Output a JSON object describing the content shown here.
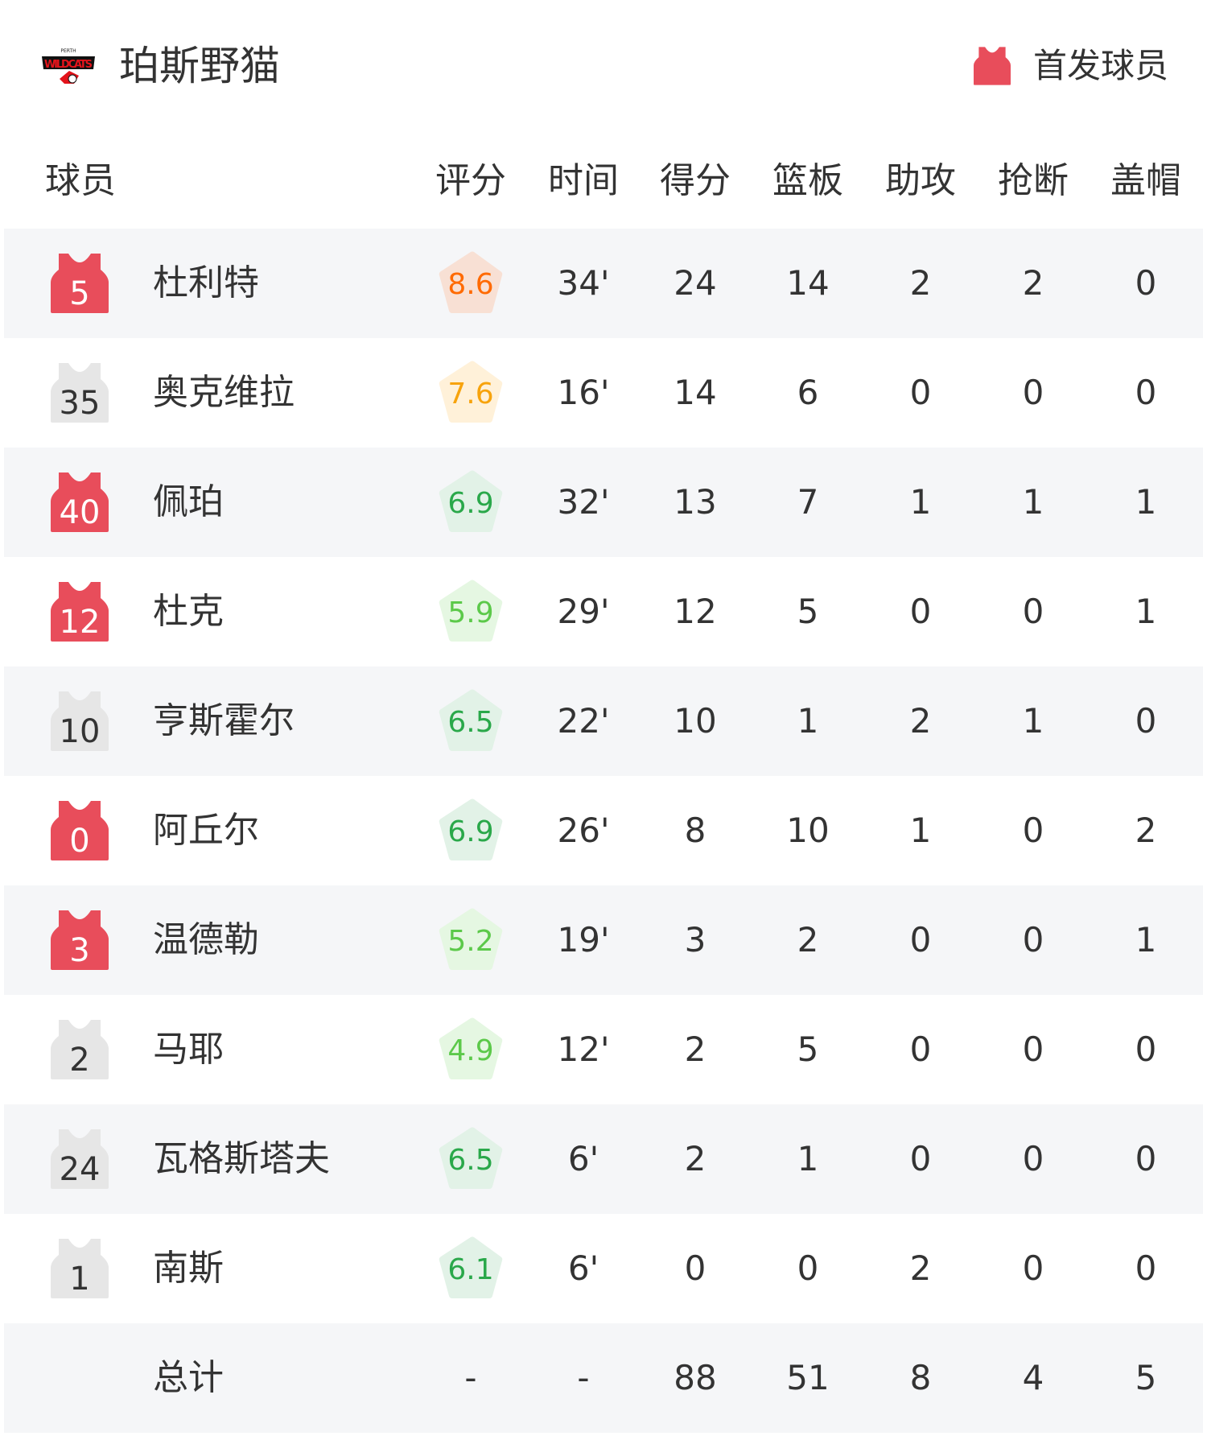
{
  "team": {
    "name": "珀斯野猫",
    "logo_text": "PERTH WILDCATS"
  },
  "legend": {
    "label": "首发球员",
    "color": "#e84d5b"
  },
  "colors": {
    "starter": "#e84d5b",
    "bench": "#e6e6e6",
    "row_alt": "#f5f6f8"
  },
  "columns": [
    "球员",
    "评分",
    "时间",
    "得分",
    "篮板",
    "助攻",
    "抢断",
    "盖帽"
  ],
  "players": [
    {
      "number": "5",
      "name": "杜利特",
      "starter": true,
      "rating": "8.6",
      "min": "34'",
      "pts": "24",
      "reb": "14",
      "ast": "2",
      "stl": "2",
      "blk": "0"
    },
    {
      "number": "35",
      "name": "奥克维拉",
      "starter": false,
      "rating": "7.6",
      "min": "16'",
      "pts": "14",
      "reb": "6",
      "ast": "0",
      "stl": "0",
      "blk": "0"
    },
    {
      "number": "40",
      "name": "佩珀",
      "starter": true,
      "rating": "6.9",
      "min": "32'",
      "pts": "13",
      "reb": "7",
      "ast": "1",
      "stl": "1",
      "blk": "1"
    },
    {
      "number": "12",
      "name": "杜克",
      "starter": true,
      "rating": "5.9",
      "min": "29'",
      "pts": "12",
      "reb": "5",
      "ast": "0",
      "stl": "0",
      "blk": "1"
    },
    {
      "number": "10",
      "name": "亨斯霍尔",
      "starter": false,
      "rating": "6.5",
      "min": "22'",
      "pts": "10",
      "reb": "1",
      "ast": "2",
      "stl": "1",
      "blk": "0"
    },
    {
      "number": "0",
      "name": "阿丘尔",
      "starter": true,
      "rating": "6.9",
      "min": "26'",
      "pts": "8",
      "reb": "10",
      "ast": "1",
      "stl": "0",
      "blk": "2"
    },
    {
      "number": "3",
      "name": "温德勒",
      "starter": true,
      "rating": "5.2",
      "min": "19'",
      "pts": "3",
      "reb": "2",
      "ast": "0",
      "stl": "0",
      "blk": "1"
    },
    {
      "number": "2",
      "name": "马耶",
      "starter": false,
      "rating": "4.9",
      "min": "12'",
      "pts": "2",
      "reb": "5",
      "ast": "0",
      "stl": "0",
      "blk": "0"
    },
    {
      "number": "24",
      "name": "瓦格斯塔夫",
      "starter": false,
      "rating": "6.5",
      "min": "6'",
      "pts": "2",
      "reb": "1",
      "ast": "0",
      "stl": "0",
      "blk": "0"
    },
    {
      "number": "1",
      "name": "南斯",
      "starter": false,
      "rating": "6.1",
      "min": "6'",
      "pts": "0",
      "reb": "0",
      "ast": "2",
      "stl": "0",
      "blk": "0"
    }
  ],
  "totals": {
    "label": "总计",
    "rating": "-",
    "min": "-",
    "pts": "88",
    "reb": "51",
    "ast": "8",
    "stl": "4",
    "blk": "5"
  }
}
